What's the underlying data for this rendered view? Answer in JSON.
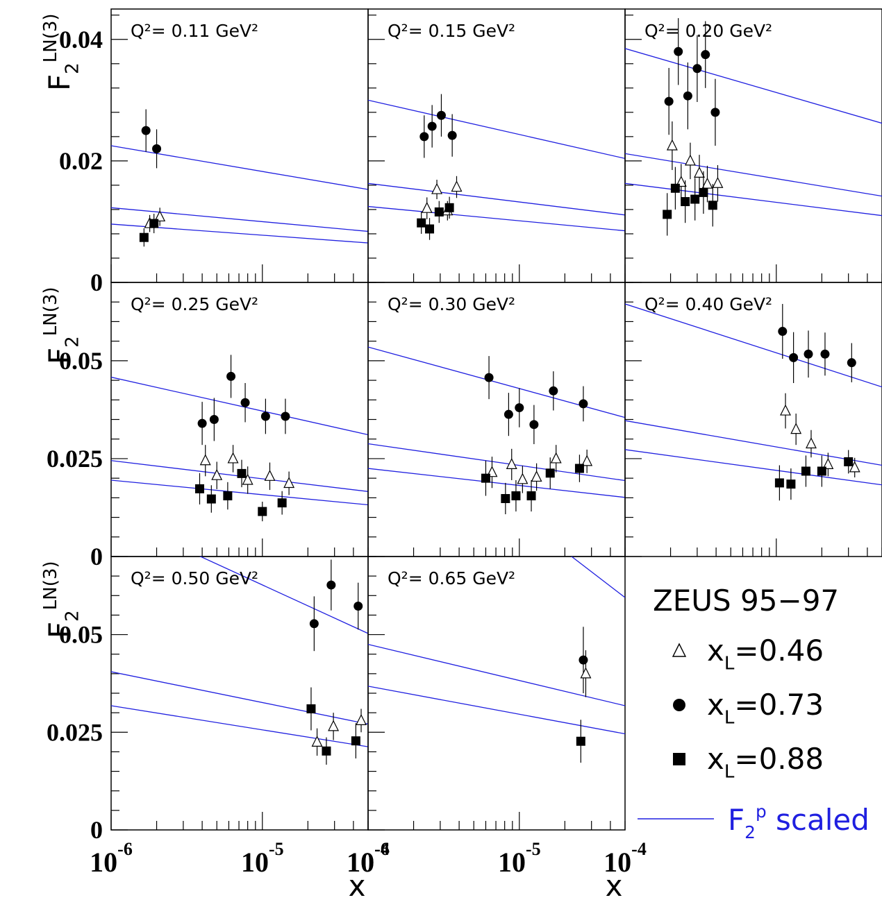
{
  "chart_data": {
    "type": "scatter",
    "experiment": "ZEUS 95−97",
    "y_axis_title": "F_2^{LN(3)}",
    "x_axis_title": "x",
    "x_scale": "log",
    "x_range": [
      1e-06,
      5e-05
    ],
    "x_tick_labels": [
      "10^-6",
      "10^-5",
      "10^-4"
    ],
    "legend": [
      {
        "marker": "open-triangle",
        "label": "x_L=0.46"
      },
      {
        "marker": "filled-circle",
        "label": "x_L=0.73"
      },
      {
        "marker": "filled-square",
        "label": "x_L=0.88"
      },
      {
        "marker": "line",
        "label": "F_2^p scaled",
        "color": "#1f1fe0"
      }
    ],
    "curve_color": "#1f1fe0",
    "panels": [
      {
        "q2_label": "Q²= 0.11 GeV²",
        "ylim": [
          0,
          0.045
        ],
        "y_ticks": [
          "0",
          "0.02",
          "0.04"
        ],
        "series": [
          {
            "xl": "0.73",
            "points": [
              [
                1.7e-06,
                0.025,
                0.0035
              ],
              [
                2e-06,
                0.022,
                0.0032
              ]
            ]
          },
          {
            "xl": "0.46",
            "points": [
              [
                1.8e-06,
                0.0097,
                0.0014
              ],
              [
                2.1e-06,
                0.0108,
                0.0015
              ]
            ]
          },
          {
            "xl": "0.88",
            "points": [
              [
                1.65e-06,
                0.0074,
                0.0015
              ],
              [
                1.92e-06,
                0.0097,
                0.0016
              ]
            ]
          }
        ],
        "curves": [
          [
            0.0225,
            0.0153
          ],
          [
            0.0123,
            0.0084
          ],
          [
            0.0096,
            0.0065
          ]
        ]
      },
      {
        "q2_label": "Q²= 0.15 GeV²",
        "ylim": [
          0,
          0.045
        ],
        "y_ticks": [],
        "series": [
          {
            "xl": "0.73",
            "points": [
              [
                2.35e-06,
                0.024,
                0.0035
              ],
              [
                2.65e-06,
                0.0257,
                0.0035
              ],
              [
                3.05e-06,
                0.0275,
                0.0035
              ],
              [
                3.6e-06,
                0.0242,
                0.0035
              ]
            ]
          },
          {
            "xl": "0.46",
            "points": [
              [
                2.45e-06,
                0.0122,
                0.0018
              ],
              [
                2.85e-06,
                0.0153,
                0.0016
              ],
              [
                3.35e-06,
                0.0118,
                0.0016
              ],
              [
                3.85e-06,
                0.0157,
                0.0018
              ]
            ]
          },
          {
            "xl": "0.88",
            "points": [
              [
                2.25e-06,
                0.0098,
                0.0018
              ],
              [
                2.55e-06,
                0.0088,
                0.0018
              ],
              [
                2.95e-06,
                0.0116,
                0.0018
              ],
              [
                3.45e-06,
                0.0123,
                0.0018
              ]
            ]
          }
        ],
        "curves": [
          [
            0.03,
            0.0204
          ],
          [
            0.0163,
            0.0111
          ],
          [
            0.0125,
            0.0085
          ]
        ]
      },
      {
        "q2_label": "Q²= 0.20 GeV²",
        "ylim": [
          0,
          0.045
        ],
        "y_ticks": [],
        "series": [
          {
            "xl": "0.73",
            "points": [
              [
                1.95e-06,
                0.0298,
                0.0055
              ],
              [
                2.25e-06,
                0.038,
                0.0055
              ],
              [
                2.6e-06,
                0.0307,
                0.0055
              ],
              [
                3e-06,
                0.0352,
                0.0055
              ],
              [
                3.4e-06,
                0.0375,
                0.0055
              ],
              [
                3.95e-06,
                0.028,
                0.0055
              ]
            ]
          },
          {
            "xl": "0.46",
            "points": [
              [
                2.05e-06,
                0.0225,
                0.004
              ],
              [
                2.35e-06,
                0.0165,
                0.003
              ],
              [
                2.7e-06,
                0.02,
                0.003
              ],
              [
                3.1e-06,
                0.018,
                0.003
              ],
              [
                3.5e-06,
                0.0162,
                0.003
              ],
              [
                4.1e-06,
                0.0163,
                0.003
              ]
            ]
          },
          {
            "xl": "0.88",
            "points": [
              [
                1.9e-06,
                0.0112,
                0.0035
              ],
              [
                2.15e-06,
                0.0155,
                0.0035
              ],
              [
                2.5e-06,
                0.0133,
                0.0035
              ],
              [
                2.9e-06,
                0.0137,
                0.0035
              ],
              [
                3.3e-06,
                0.0148,
                0.0035
              ],
              [
                3.8e-06,
                0.0127,
                0.0035
              ]
            ]
          }
        ],
        "curves": [
          [
            0.0385,
            0.0262
          ],
          [
            0.0212,
            0.0142
          ],
          [
            0.0163,
            0.011
          ]
        ]
      },
      {
        "q2_label": "Q²= 0.25 GeV²",
        "ylim": [
          0,
          0.07
        ],
        "y_ticks": [
          "0",
          "0.025",
          "0.05"
        ],
        "series": [
          {
            "xl": "0.73",
            "points": [
              [
                4e-06,
                0.034,
                0.0055
              ],
              [
                4.8e-06,
                0.035,
                0.0055
              ],
              [
                6.2e-06,
                0.046,
                0.0055
              ],
              [
                7.7e-06,
                0.0393,
                0.005
              ],
              [
                1.05e-05,
                0.0358,
                0.0045
              ],
              [
                1.42e-05,
                0.0358,
                0.0045
              ]
            ]
          },
          {
            "xl": "0.46",
            "points": [
              [
                4.2e-06,
                0.0245,
                0.004
              ],
              [
                5e-06,
                0.0207,
                0.0035
              ],
              [
                6.4e-06,
                0.025,
                0.0035
              ],
              [
                8e-06,
                0.0195,
                0.0035
              ],
              [
                1.12e-05,
                0.0205,
                0.0035
              ],
              [
                1.5e-05,
                0.0187,
                0.003
              ]
            ]
          },
          {
            "xl": "0.88",
            "points": [
              [
                3.85e-06,
                0.0173,
                0.004
              ],
              [
                4.6e-06,
                0.0147,
                0.0035
              ],
              [
                5.9e-06,
                0.0155,
                0.0035
              ],
              [
                7.3e-06,
                0.0212,
                0.0035
              ],
              [
                1e-05,
                0.0115,
                0.0025
              ],
              [
                1.35e-05,
                0.0137,
                0.003
              ]
            ]
          }
        ],
        "curves": [
          [
            0.0458,
            0.0311
          ],
          [
            0.0245,
            0.0166
          ],
          [
            0.0195,
            0.0132
          ]
        ]
      },
      {
        "q2_label": "Q²= 0.30 GeV²",
        "ylim": [
          0,
          0.07
        ],
        "y_ticks": [],
        "series": [
          {
            "xl": "0.73",
            "points": [
              [
                6.3e-06,
                0.0457,
                0.0055
              ],
              [
                8.5e-06,
                0.0363,
                0.0055
              ],
              [
                1e-05,
                0.038,
                0.005
              ],
              [
                1.25e-05,
                0.0337,
                0.005
              ],
              [
                1.68e-05,
                0.0423,
                0.005
              ],
              [
                2.65e-05,
                0.039,
                0.0045
              ]
            ]
          },
          {
            "xl": "0.46",
            "points": [
              [
                6.6e-06,
                0.0215,
                0.004
              ],
              [
                8.9e-06,
                0.0235,
                0.004
              ],
              [
                1.05e-05,
                0.0197,
                0.0035
              ],
              [
                1.3e-05,
                0.0203,
                0.0035
              ],
              [
                1.75e-05,
                0.025,
                0.0035
              ],
              [
                2.8e-05,
                0.0243,
                0.003
              ]
            ]
          },
          {
            "xl": "0.88",
            "points": [
              [
                6e-06,
                0.02,
                0.0045
              ],
              [
                8.1e-06,
                0.0148,
                0.004
              ],
              [
                9.5e-06,
                0.0155,
                0.004
              ],
              [
                1.2e-05,
                0.0155,
                0.004
              ],
              [
                1.6e-05,
                0.0213,
                0.004
              ],
              [
                2.5e-05,
                0.0225,
                0.0035
              ]
            ]
          }
        ],
        "curves": [
          [
            0.0535,
            0.0355
          ],
          [
            0.0288,
            0.0194
          ],
          [
            0.0225,
            0.0151
          ]
        ]
      },
      {
        "q2_label": "Q²= 0.40 GeV²",
        "ylim": [
          0,
          0.07
        ],
        "y_ticks": [],
        "series": [
          {
            "xl": "0.73",
            "points": [
              [
                1.1e-05,
                0.0575,
                0.007
              ],
              [
                1.3e-05,
                0.0508,
                0.0065
              ],
              [
                1.63e-05,
                0.0517,
                0.006
              ],
              [
                2.1e-05,
                0.0517,
                0.0055
              ],
              [
                3.15e-05,
                0.0495,
                0.005
              ]
            ]
          },
          {
            "xl": "0.46",
            "points": [
              [
                1.15e-05,
                0.0372,
                0.0045
              ],
              [
                1.35e-05,
                0.0325,
                0.004
              ],
              [
                1.7e-05,
                0.0288,
                0.0035
              ],
              [
                2.2e-05,
                0.0235,
                0.003
              ],
              [
                3.3e-05,
                0.0227,
                0.0025
              ]
            ]
          },
          {
            "xl": "0.88",
            "points": [
              [
                1.05e-05,
                0.0188,
                0.0045
              ],
              [
                1.25e-05,
                0.0185,
                0.004
              ],
              [
                1.57e-05,
                0.0218,
                0.004
              ],
              [
                2e-05,
                0.0218,
                0.004
              ],
              [
                3e-05,
                0.0242,
                0.003
              ]
            ]
          }
        ],
        "curves": [
          [
            0.0645,
            0.0433
          ],
          [
            0.0347,
            0.0233
          ],
          [
            0.0273,
            0.0183
          ]
        ]
      },
      {
        "q2_label": "Q²= 0.50 GeV²",
        "ylim": [
          0,
          0.07
        ],
        "y_ticks": [
          "0",
          "0.025",
          "0.05"
        ],
        "series": [
          {
            "xl": "0.73",
            "points": [
              [
                2.2e-05,
                0.0528,
                0.007
              ],
              [
                2.85e-05,
                0.0627,
                0.0065
              ],
              [
                4.3e-05,
                0.0573,
                0.006
              ]
            ]
          },
          {
            "xl": "0.46",
            "points": [
              [
                2.3e-05,
                0.0225,
                0.0035
              ],
              [
                2.95e-05,
                0.0265,
                0.0035
              ],
              [
                4.5e-05,
                0.028,
                0.003
              ]
            ]
          },
          {
            "xl": "0.88",
            "points": [
              [
                2.1e-05,
                0.031,
                0.0055
              ],
              [
                2.65e-05,
                0.0202,
                0.0035
              ],
              [
                4.15e-05,
                0.0228,
                0.0045
              ]
            ]
          }
        ],
        "curves": [
          [
            0.0805,
            0.0503
          ],
          [
            0.0405,
            0.0271
          ],
          [
            0.0318,
            0.0213
          ]
        ]
      },
      {
        "q2_label": "Q²= 0.65 GeV²",
        "ylim": [
          0,
          0.07
        ],
        "y_ticks": [],
        "series": [
          {
            "xl": "0.73",
            "points": [
              [
                2.65e-05,
                0.0435,
                0.0085
              ]
            ]
          },
          {
            "xl": "0.46",
            "points": [
              [
                2.75e-05,
                0.04,
                0.006
              ]
            ]
          },
          {
            "xl": "0.88",
            "points": [
              [
                2.55e-05,
                0.0227,
                0.0055
              ]
            ]
          }
        ],
        "curves": [
          [
            0.11,
            0.0595
          ],
          [
            0.0475,
            0.0318
          ],
          [
            0.0368,
            0.0246
          ]
        ]
      }
    ]
  }
}
